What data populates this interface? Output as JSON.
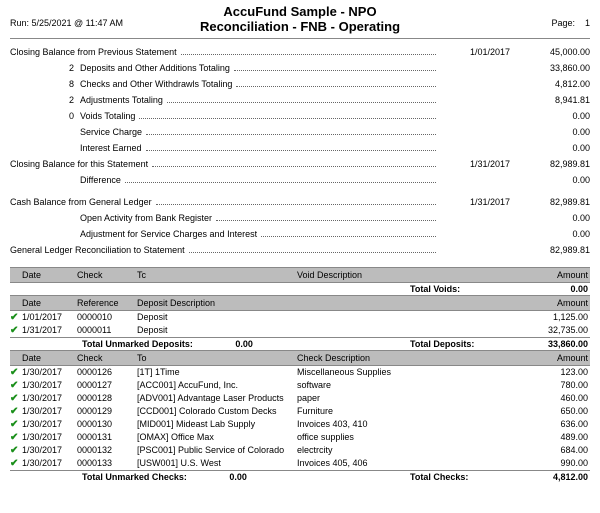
{
  "header": {
    "title": "AccuFund Sample - NPO",
    "subtitle": "Reconciliation - FNB - Operating",
    "run": "Run: 5/25/2021 @ 11:47 AM",
    "page_label": "Page:",
    "page_num": "1"
  },
  "summary": {
    "block1": [
      {
        "count": "",
        "label": "Closing Balance from Previous Statement",
        "date": "1/01/2017",
        "amount": "45,000.00",
        "indent": false
      },
      {
        "count": "2",
        "label": "Deposits and Other Additions Totaling",
        "date": "",
        "amount": "33,860.00",
        "indent": true
      },
      {
        "count": "8",
        "label": "Checks and Other Withdrawls Totaling",
        "date": "",
        "amount": "4,812.00",
        "indent": true,
        "cursor": true
      },
      {
        "count": "2",
        "label": "Adjustments Totaling",
        "date": "",
        "amount": "8,941.81",
        "indent": true
      },
      {
        "count": "0",
        "label": "Voids Totaling",
        "date": "",
        "amount": "0.00",
        "indent": true
      },
      {
        "count": "",
        "label": "Service Charge",
        "date": "",
        "amount": "0.00",
        "indent": true
      },
      {
        "count": "",
        "label": "Interest Earned",
        "date": "",
        "amount": "0.00",
        "indent": true
      },
      {
        "count": "",
        "label": "Closing Balance for this Statement",
        "date": "1/31/2017",
        "amount": "82,989.81",
        "indent": false
      },
      {
        "count": "",
        "label": "Difference",
        "date": "",
        "amount": "0.00",
        "indent": true
      }
    ],
    "block2": [
      {
        "count": "",
        "label": "Cash Balance from General Ledger",
        "date": "1/31/2017",
        "amount": "82,989.81",
        "indent": false
      },
      {
        "count": "",
        "label": "Open Activity from Bank Register",
        "date": "",
        "amount": "0.00",
        "indent": true
      },
      {
        "count": "",
        "label": "Adjustment for Service Charges and Interest",
        "date": "",
        "amount": "0.00",
        "indent": true
      },
      {
        "count": "",
        "label": "General Ledger Reconciliation to Statement",
        "date": "",
        "amount": "82,989.81",
        "indent": false
      }
    ]
  },
  "voids": {
    "columns": {
      "date": "Date",
      "check": "Check",
      "tc": "Tc",
      "desc": "Void Description",
      "amount": "Amount"
    },
    "total_label": "Total Voids:",
    "total_value": "0.00"
  },
  "deposits": {
    "columns": {
      "date": "Date",
      "ref": "Reference",
      "desc": "Deposit Description",
      "amount": "Amount"
    },
    "rows": [
      {
        "mark": "✔",
        "date": "1/01/2017",
        "ref": "0000010",
        "desc": "Deposit",
        "amount": "1,125.00"
      },
      {
        "mark": "✔",
        "date": "1/31/2017",
        "ref": "0000011",
        "desc": "Deposit",
        "amount": "32,735.00"
      }
    ],
    "unmarked_label": "Total Unmarked Deposits:",
    "unmarked_value": "0.00",
    "total_label": "Total Deposits:",
    "total_value": "33,860.00"
  },
  "checks": {
    "columns": {
      "date": "Date",
      "check": "Check",
      "to": "To",
      "desc": "Check Description",
      "amount": "Amount"
    },
    "rows": [
      {
        "mark": "✔",
        "date": "1/30/2017",
        "ref": "0000126",
        "to": "[1T] 1Time",
        "desc": "Miscellaneous Supplies",
        "amount": "123.00"
      },
      {
        "mark": "✔",
        "date": "1/30/2017",
        "ref": "0000127",
        "to": "[ACC001] AccuFund, Inc.",
        "desc": "software",
        "amount": "780.00"
      },
      {
        "mark": "✔",
        "date": "1/30/2017",
        "ref": "0000128",
        "to": "[ADV001] Advantage Laser Products",
        "desc": "paper",
        "amount": "460.00"
      },
      {
        "mark": "✔",
        "date": "1/30/2017",
        "ref": "0000129",
        "to": "[CCD001] Colorado Custom Decks",
        "desc": "Furniture",
        "amount": "650.00"
      },
      {
        "mark": "✔",
        "date": "1/30/2017",
        "ref": "0000130",
        "to": "[MID001] Mideast Lab Supply",
        "desc": "Invoices 403, 410",
        "amount": "636.00"
      },
      {
        "mark": "✔",
        "date": "1/30/2017",
        "ref": "0000131",
        "to": "[OMAX] Office Max",
        "desc": "office supplies",
        "amount": "489.00"
      },
      {
        "mark": "✔",
        "date": "1/30/2017",
        "ref": "0000132",
        "to": "[PSC001] Public Service of Colorado",
        "desc": "electrcity",
        "amount": "684.00"
      },
      {
        "mark": "✔",
        "date": "1/30/2017",
        "ref": "0000133",
        "to": "[USW001] U.S. West",
        "desc": "Invoices 405, 406",
        "amount": "990.00"
      }
    ],
    "unmarked_label": "Total Unmarked Checks:",
    "unmarked_value": "0.00",
    "total_label": "Total Checks:",
    "total_value": "4,812.00"
  }
}
